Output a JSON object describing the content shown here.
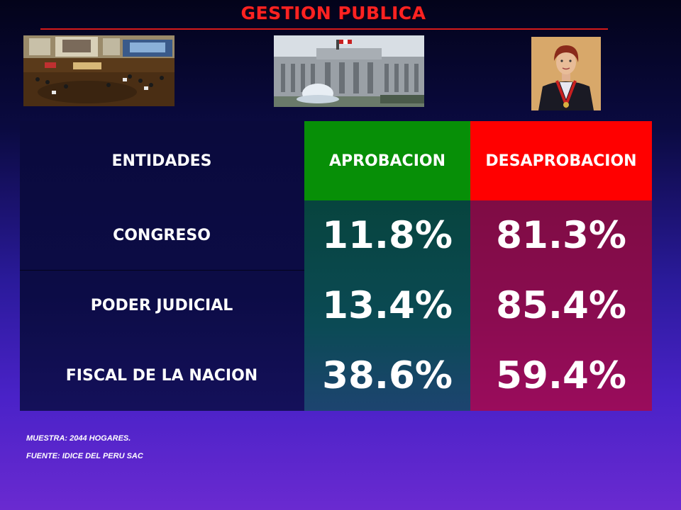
{
  "slide": {
    "title": "GESTION PUBLICA"
  },
  "photos": [
    {
      "icon": "congress-chamber-photo"
    },
    {
      "icon": "palace-of-justice-photo"
    },
    {
      "icon": "fiscal-portrait-photo"
    }
  ],
  "colors": {
    "title": "#ff2222",
    "aprobacion_header": "#078f07",
    "desaprobacion_header": "#ff0000"
  },
  "chart_data": {
    "type": "table",
    "headers": [
      "ENTIDADES",
      "APROBACION",
      "DESAPROBACION"
    ],
    "rows": [
      {
        "entidad": "CONGRESO",
        "aprobacion": "11.8%",
        "desaprobacion": "81.3%"
      },
      {
        "entidad": "PODER JUDICIAL",
        "aprobacion": "13.4%",
        "desaprobacion": "85.4%"
      },
      {
        "entidad": "FISCAL DE LA NACION",
        "aprobacion": "38.6%",
        "desaprobacion": "59.4%"
      }
    ]
  },
  "footnotes": {
    "muestra": "MUESTRA: 2044 HOGARES.",
    "fuente": "FUENTE: IDICE DEL PERU SAC"
  }
}
